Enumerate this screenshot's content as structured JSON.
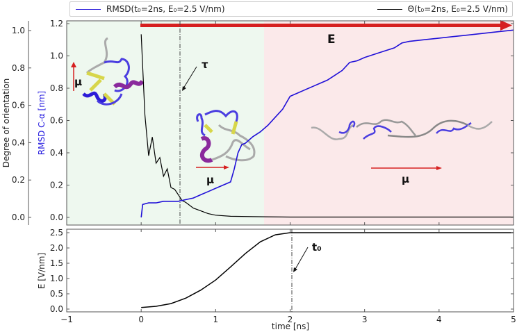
{
  "legend": {
    "rmsd_label": "RMSD(t₀=2ns, E₀=2.5 V/nm)",
    "theta_label": "Θ(t₀=2ns, E₀=2.5 V/nm)",
    "rmsd_color": "#1f0fd8",
    "theta_color": "#000000"
  },
  "annotations": {
    "field_label": "E",
    "tau_label": "τ",
    "t0_label": "t₀",
    "mu_label": "μ",
    "arrow_color": "#d62020"
  },
  "colors": {
    "region_pre": "#eef8ef",
    "region_post": "#fbe9ea"
  },
  "chart_data": [
    {
      "type": "line",
      "title": "",
      "xlabel": "",
      "ylabel_left": "Degree of orientation",
      "ylabel_right": "RMSD C-α [nm]",
      "xlim": [
        -1,
        5
      ],
      "ylim_left": [
        0.0,
        1.0
      ],
      "ylim_rmsd": [
        0.0,
        1.2
      ],
      "yticks_left": [
        "0.0",
        "0.2",
        "0.4",
        "0.6",
        "0.8",
        "1.0"
      ],
      "yticks_rmsd": [
        "0.0",
        "0.2",
        "0.4",
        "0.6",
        "0.8",
        "1.0",
        "1.2"
      ],
      "shaded_regions": [
        {
          "x": [
            -1,
            1.65
          ],
          "color": "#eef8ef"
        },
        {
          "x": [
            1.65,
            5
          ],
          "color": "#fbe9ea"
        }
      ],
      "vlines": [
        {
          "x": 0.53,
          "label": "τ",
          "style": "dashdot"
        }
      ],
      "series": [
        {
          "name": "RMSD(t0=2ns, E0=2.5 V/nm)",
          "axis": "right",
          "color": "#1f0fd8",
          "x": [
            0.0,
            0.02,
            0.1,
            0.2,
            0.3,
            0.4,
            0.5,
            0.6,
            0.7,
            0.8,
            0.9,
            1.0,
            1.1,
            1.2,
            1.25,
            1.3,
            1.35,
            1.4,
            1.45,
            1.5,
            1.6,
            1.7,
            1.8,
            1.9,
            2.0,
            2.1,
            2.2,
            2.3,
            2.4,
            2.5,
            2.6,
            2.7,
            2.8,
            2.9,
            3.0,
            3.2,
            3.4,
            3.5,
            3.6,
            3.8,
            4.0,
            4.2,
            4.4,
            4.6,
            4.8,
            5.0
          ],
          "values": [
            0.0,
            0.08,
            0.09,
            0.09,
            0.1,
            0.1,
            0.1,
            0.11,
            0.12,
            0.14,
            0.16,
            0.18,
            0.2,
            0.22,
            0.3,
            0.4,
            0.45,
            0.46,
            0.48,
            0.5,
            0.53,
            0.57,
            0.62,
            0.67,
            0.75,
            0.77,
            0.79,
            0.81,
            0.83,
            0.85,
            0.88,
            0.91,
            0.96,
            0.97,
            0.99,
            1.02,
            1.05,
            1.08,
            1.09,
            1.1,
            1.11,
            1.12,
            1.13,
            1.14,
            1.15,
            1.16
          ]
        },
        {
          "name": "Θ(t0=2ns, E0=2.5 V/nm)",
          "axis": "left",
          "color": "#000000",
          "x": [
            0.0,
            0.05,
            0.1,
            0.15,
            0.2,
            0.25,
            0.3,
            0.35,
            0.4,
            0.45,
            0.5,
            0.55,
            0.6,
            0.7,
            0.8,
            0.9,
            1.0,
            1.2,
            1.5,
            2.0,
            3.0,
            4.0,
            5.0
          ],
          "values": [
            0.98,
            0.55,
            0.33,
            0.43,
            0.29,
            0.32,
            0.22,
            0.26,
            0.16,
            0.15,
            0.12,
            0.09,
            0.08,
            0.05,
            0.035,
            0.02,
            0.012,
            0.006,
            0.004,
            0.002,
            0.002,
            0.002,
            0.002
          ]
        }
      ]
    },
    {
      "type": "line",
      "title": "",
      "xlabel": "time [ns]",
      "ylabel": "E [V/nm]",
      "xlim": [
        -1,
        5
      ],
      "ylim": [
        0.0,
        2.6
      ],
      "xticks": [
        "−1",
        "0",
        "1",
        "2",
        "3",
        "4",
        "5"
      ],
      "yticks": [
        "0.0",
        "0.5",
        "1.0",
        "1.5",
        "2.0",
        "2.5"
      ],
      "vlines": [
        {
          "x": 2,
          "label": "t₀",
          "style": "dashdot"
        }
      ],
      "series": [
        {
          "name": "E(t)",
          "color": "#000000",
          "x": [
            0.0,
            0.2,
            0.4,
            0.6,
            0.8,
            1.0,
            1.2,
            1.4,
            1.6,
            1.8,
            2.0,
            3.0,
            4.0,
            5.0
          ],
          "values": [
            0.05,
            0.09,
            0.18,
            0.36,
            0.62,
            0.95,
            1.38,
            1.82,
            2.2,
            2.43,
            2.5,
            2.5,
            2.5,
            2.5
          ]
        }
      ]
    }
  ]
}
